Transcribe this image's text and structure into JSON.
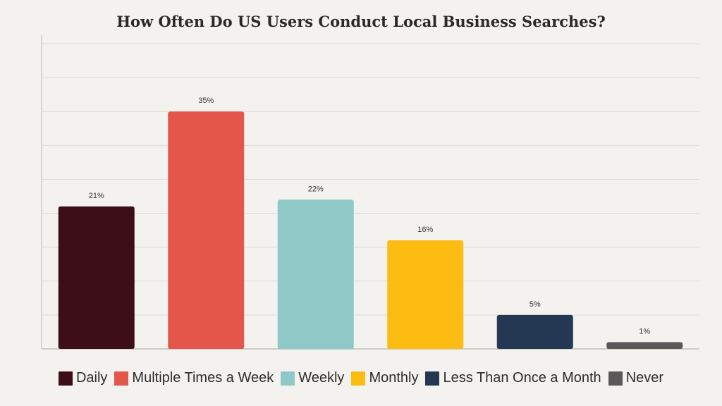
{
  "chart_data": {
    "type": "bar",
    "title": "How Often Do US Users Conduct Local Business Searches?",
    "categories": [
      "Daily",
      "Multiple Times a Week",
      "Weekly",
      "Monthly",
      "Less Than Once a Month",
      "Never"
    ],
    "values": [
      21,
      35,
      22,
      16,
      5,
      1
    ],
    "data_labels": [
      "21%",
      "35%",
      "22%",
      "16%",
      "5%",
      "1%"
    ],
    "colors": [
      "#3d0d18",
      "#e5564a",
      "#8ec9c7",
      "#fdbc11",
      "#243753",
      "#5c5759"
    ],
    "xlabel": "",
    "ylabel": "",
    "ylim": [
      0,
      45
    ],
    "grid": true,
    "legend": "bottom"
  }
}
